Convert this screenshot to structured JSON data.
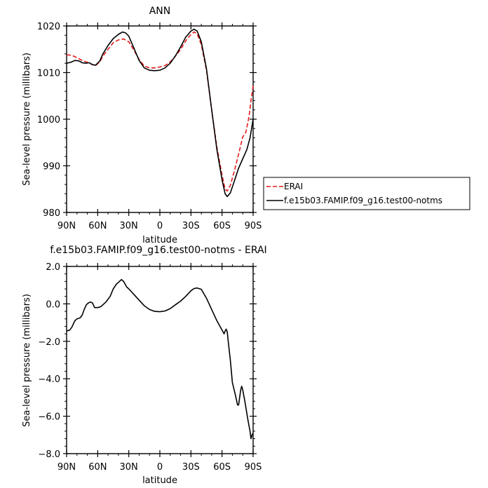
{
  "chart_data": [
    {
      "type": "line",
      "title": "ANN",
      "xlabel": "latitude",
      "ylabel": "Sea-level pressure (millibars)",
      "xlim": [
        90,
        -90
      ],
      "ylim": [
        980,
        1020
      ],
      "x_ticks": [
        90,
        60,
        30,
        0,
        -30,
        -60,
        -90
      ],
      "x_tick_labels": [
        "90N",
        "60N",
        "30N",
        "0",
        "30S",
        "60S",
        "90S"
      ],
      "y_ticks": [
        980,
        990,
        1000,
        1010,
        1020
      ],
      "y_tick_labels": [
        "980",
        "990",
        "1000",
        "1010",
        "1020"
      ],
      "grid": false,
      "legend_position": "right-bottom (outside)",
      "series": [
        {
          "name": "ERAI",
          "color": "#e41a1c",
          "dash": "dashed",
          "points": [
            [
              90,
              1013.8
            ],
            [
              85,
              1013.7
            ],
            [
              80,
              1013.2
            ],
            [
              75,
              1012.6
            ],
            [
              70,
              1012.2
            ],
            [
              65,
              1011.7
            ],
            [
              62,
              1011.5
            ],
            [
              58,
              1012.3
            ],
            [
              55,
              1013.5
            ],
            [
              50,
              1015.0
            ],
            [
              45,
              1016.4
            ],
            [
              40,
              1017.0
            ],
            [
              35,
              1017.2
            ],
            [
              30,
              1016.6
            ],
            [
              25,
              1014.8
            ],
            [
              20,
              1012.8
            ],
            [
              15,
              1011.4
            ],
            [
              10,
              1011.0
            ],
            [
              5,
              1011.0
            ],
            [
              0,
              1011.2
            ],
            [
              -5,
              1011.5
            ],
            [
              -10,
              1012.3
            ],
            [
              -15,
              1013.5
            ],
            [
              -20,
              1015.0
            ],
            [
              -25,
              1016.8
            ],
            [
              -30,
              1018.2
            ],
            [
              -33,
              1018.7
            ],
            [
              -36,
              1018.3
            ],
            [
              -40,
              1016.0
            ],
            [
              -45,
              1010.5
            ],
            [
              -50,
              1002.0
            ],
            [
              -55,
              994.0
            ],
            [
              -60,
              988.0
            ],
            [
              -63,
              985.0
            ],
            [
              -65,
              984.6
            ],
            [
              -68,
              985.8
            ],
            [
              -72,
              989.0
            ],
            [
              -76,
              992.5
            ],
            [
              -80,
              996.2
            ],
            [
              -83,
              997.2
            ],
            [
              -86,
              1000.5
            ],
            [
              -88,
              1004.0
            ],
            [
              -90,
              1007.2
            ]
          ]
        },
        {
          "name": "f.e15b03.FAMIP.f09_g16.test00-notms",
          "color": "#000000",
          "dash": "solid",
          "points": [
            [
              90,
              1012.0
            ],
            [
              86,
              1012.2
            ],
            [
              82,
              1012.6
            ],
            [
              78,
              1012.5
            ],
            [
              75,
              1012.1
            ],
            [
              72,
              1012.0
            ],
            [
              68,
              1012.1
            ],
            [
              65,
              1011.7
            ],
            [
              62,
              1011.6
            ],
            [
              58,
              1012.5
            ],
            [
              55,
              1014.0
            ],
            [
              50,
              1015.8
            ],
            [
              45,
              1017.3
            ],
            [
              40,
              1018.2
            ],
            [
              36,
              1018.7
            ],
            [
              33,
              1018.5
            ],
            [
              30,
              1017.8
            ],
            [
              25,
              1015.2
            ],
            [
              20,
              1012.6
            ],
            [
              15,
              1011.0
            ],
            [
              10,
              1010.5
            ],
            [
              5,
              1010.4
            ],
            [
              0,
              1010.5
            ],
            [
              -5,
              1011.0
            ],
            [
              -10,
              1012.0
            ],
            [
              -15,
              1013.6
            ],
            [
              -20,
              1015.5
            ],
            [
              -25,
              1017.6
            ],
            [
              -30,
              1018.9
            ],
            [
              -33,
              1019.3
            ],
            [
              -36,
              1018.9
            ],
            [
              -40,
              1016.6
            ],
            [
              -45,
              1010.8
            ],
            [
              -50,
              1002.0
            ],
            [
              -55,
              993.5
            ],
            [
              -60,
              987.0
            ],
            [
              -63,
              984.0
            ],
            [
              -65,
              983.4
            ],
            [
              -68,
              984.2
            ],
            [
              -72,
              986.8
            ],
            [
              -76,
              989.5
            ],
            [
              -80,
              991.5
            ],
            [
              -84,
              993.5
            ],
            [
              -87,
              996.0
            ],
            [
              -90,
              1000.0
            ]
          ]
        }
      ]
    },
    {
      "type": "line",
      "title": "f.e15b03.FAMIP.f09_g16.test00-notms - ERAI",
      "xlabel": "latitude",
      "ylabel": "Sea-level pressure (millibars)",
      "xlim": [
        90,
        -90
      ],
      "ylim": [
        -8,
        2
      ],
      "x_ticks": [
        90,
        60,
        30,
        0,
        -30,
        -60,
        -90
      ],
      "x_tick_labels": [
        "90N",
        "60N",
        "30N",
        "0",
        "30S",
        "60S",
        "90S"
      ],
      "y_ticks": [
        -8,
        -6,
        -4,
        -2,
        0,
        2
      ],
      "y_tick_labels": [
        "−8.0",
        "−6.0",
        "−4.0",
        "−2.0",
        "0.0",
        "2.0"
      ],
      "grid": false,
      "series": [
        {
          "color": "#000000",
          "dash": "solid",
          "points": [
            [
              90,
              -1.45
            ],
            [
              87,
              -1.4
            ],
            [
              85,
              -1.25
            ],
            [
              82,
              -0.9
            ],
            [
              80,
              -0.8
            ],
            [
              77,
              -0.75
            ],
            [
              75,
              -0.6
            ],
            [
              73,
              -0.3
            ],
            [
              71,
              -0.05
            ],
            [
              69,
              0.05
            ],
            [
              67,
              0.1
            ],
            [
              65,
              0.05
            ],
            [
              63,
              -0.2
            ],
            [
              60,
              -0.2
            ],
            [
              57,
              -0.15
            ],
            [
              55,
              -0.05
            ],
            [
              52,
              0.1
            ],
            [
              48,
              0.4
            ],
            [
              45,
              0.8
            ],
            [
              42,
              1.05
            ],
            [
              40,
              1.15
            ],
            [
              37,
              1.3
            ],
            [
              35,
              1.2
            ],
            [
              32,
              0.9
            ],
            [
              30,
              0.8
            ],
            [
              25,
              0.5
            ],
            [
              20,
              0.2
            ],
            [
              15,
              -0.1
            ],
            [
              10,
              -0.3
            ],
            [
              5,
              -0.4
            ],
            [
              0,
              -0.42
            ],
            [
              -5,
              -0.38
            ],
            [
              -10,
              -0.25
            ],
            [
              -15,
              -0.05
            ],
            [
              -20,
              0.15
            ],
            [
              -25,
              0.4
            ],
            [
              -30,
              0.7
            ],
            [
              -33,
              0.82
            ],
            [
              -36,
              0.85
            ],
            [
              -40,
              0.78
            ],
            [
              -45,
              0.3
            ],
            [
              -50,
              -0.3
            ],
            [
              -55,
              -0.9
            ],
            [
              -60,
              -1.4
            ],
            [
              -62,
              -1.6
            ],
            [
              -63,
              -1.45
            ],
            [
              -64,
              -1.35
            ],
            [
              -65,
              -1.5
            ],
            [
              -66,
              -2.0
            ],
            [
              -68,
              -3.0
            ],
            [
              -70,
              -4.2
            ],
            [
              -73,
              -4.9
            ],
            [
              -75,
              -5.4
            ],
            [
              -76,
              -5.4
            ],
            [
              -77,
              -5.0
            ],
            [
              -78,
              -4.6
            ],
            [
              -79,
              -4.4
            ],
            [
              -80,
              -4.6
            ],
            [
              -82,
              -5.2
            ],
            [
              -85,
              -6.2
            ],
            [
              -87,
              -6.8
            ],
            [
              -88,
              -7.2
            ],
            [
              -89,
              -7.0
            ],
            [
              -90,
              -6.9
            ]
          ]
        }
      ]
    }
  ],
  "legend": {
    "entries": [
      {
        "label": "ERAI"
      },
      {
        "label": "f.e15b03.FAMIP.f09_g16.test00-notms"
      }
    ]
  }
}
